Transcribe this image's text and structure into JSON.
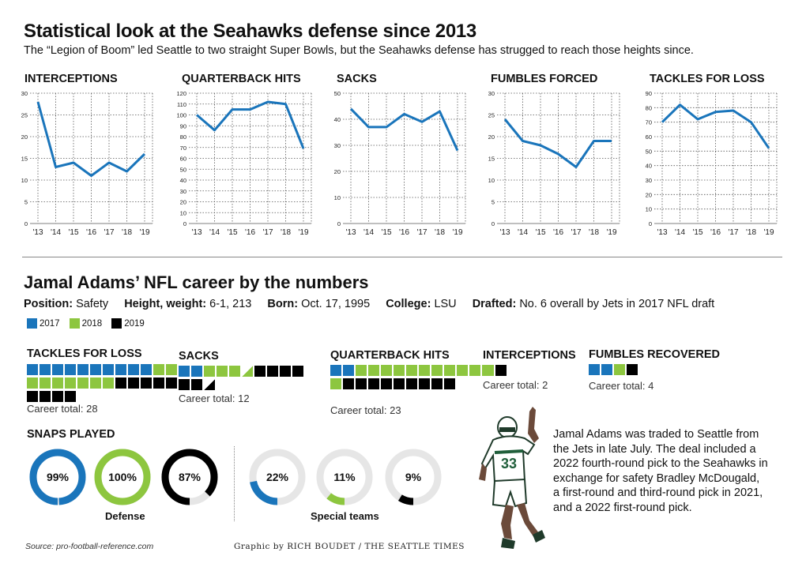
{
  "header": {
    "title": "Statistical look at the Seahawks defense since 2013",
    "subtitle": "The “Legion of Boom” led Seattle to two straight Super Bowls, but the Seahawks defense has strugged to reach those heights since."
  },
  "colors": {
    "y2017": "#1a75bb",
    "y2018": "#8dc63f",
    "y2019": "#000000",
    "line": "#1a75bb",
    "ring": "#e6e6e6"
  },
  "chart_data": [
    {
      "type": "line",
      "title": "INTERCEPTIONS",
      "categories": [
        "'13",
        "'14",
        "'15",
        "'16",
        "'17",
        "'18",
        "'19"
      ],
      "values": [
        28,
        13,
        14,
        11,
        14,
        12,
        16
      ],
      "ylim": [
        0,
        30
      ],
      "yticks": [
        0,
        5,
        10,
        15,
        20,
        25,
        30
      ],
      "grid": true
    },
    {
      "type": "line",
      "title": "QUARTERBACK HITS",
      "categories": [
        "'13",
        "'14",
        "'15",
        "'16",
        "'17",
        "'18",
        "'19"
      ],
      "values": [
        100,
        86,
        105,
        105,
        112,
        110,
        69
      ],
      "ylim": [
        0,
        120
      ],
      "yticks": [
        0,
        10,
        20,
        30,
        40,
        50,
        60,
        70,
        80,
        90,
        100,
        110,
        120
      ],
      "grid": true
    },
    {
      "type": "line",
      "title": "SACKS",
      "categories": [
        "'13",
        "'14",
        "'15",
        "'16",
        "'17",
        "'18",
        "'19"
      ],
      "values": [
        44,
        37,
        37,
        42,
        39,
        43,
        28
      ],
      "ylim": [
        0,
        50
      ],
      "yticks": [
        0,
        10,
        20,
        30,
        40,
        50
      ],
      "grid": true
    },
    {
      "type": "line",
      "title": "FUMBLES FORCED",
      "categories": [
        "'13",
        "'14",
        "'15",
        "'16",
        "'17",
        "'18",
        "'19"
      ],
      "values": [
        24,
        19,
        18,
        16,
        13,
        19,
        19
      ],
      "ylim": [
        0,
        30
      ],
      "yticks": [
        0,
        5,
        10,
        15,
        20,
        25,
        30
      ],
      "grid": true
    },
    {
      "type": "line",
      "title": "TACKLES FOR LOSS",
      "categories": [
        "'13",
        "'14",
        "'15",
        "'16",
        "'17",
        "'18",
        "'19"
      ],
      "values": [
        70,
        82,
        72,
        77,
        78,
        70,
        52
      ],
      "ylim": [
        0,
        90
      ],
      "yticks": [
        0,
        10,
        20,
        30,
        40,
        50,
        60,
        70,
        80,
        90
      ],
      "grid": true
    }
  ],
  "section2": {
    "title": "Jamal Adams’ NFL career by the numbers",
    "bio": [
      {
        "label": "Position:",
        "value": "Safety"
      },
      {
        "label": "Height, weight:",
        "value": "6-1, 213"
      },
      {
        "label": "Born:",
        "value": "Oct. 17, 1995"
      },
      {
        "label": "College:",
        "value": "LSU"
      },
      {
        "label": "Drafted:",
        "value": "No. 6 overall by Jets in 2017 NFL draft"
      }
    ],
    "legend": [
      "2017",
      "2018",
      "2019"
    ],
    "stats": [
      {
        "title": "TACKLES FOR LOSS",
        "career": "Career total: 28",
        "y2017": 10,
        "y2018": 9,
        "y2019": 9
      },
      {
        "title": "SACKS",
        "career": "Career total: 12",
        "y2017": 2,
        "y2018": 3.5,
        "y2019": 6.5
      },
      {
        "title": "QUARTERBACK HITS",
        "career": "Career total: 23",
        "y2017": 2,
        "y2018": 12,
        "y2019": 9
      },
      {
        "title": "INTERCEPTIONS",
        "career": "Career total: 2",
        "y2017": 0,
        "y2018": 1,
        "y2019": 1
      },
      {
        "title": "FUMBLES RECOVERED",
        "career": "Career total: 4",
        "y2017": 2,
        "y2018": 1,
        "y2019": 1
      }
    ],
    "snaps": {
      "title": "SNAPS PLAYED",
      "defense_label": "Defense",
      "special_label": "Special teams",
      "defense": [
        {
          "label": "99%",
          "value": 99,
          "year": "2017"
        },
        {
          "label": "100%",
          "value": 100,
          "year": "2018"
        },
        {
          "label": "87%",
          "value": 87,
          "year": "2019"
        }
      ],
      "special": [
        {
          "label": "22%",
          "value": 22,
          "year": "2017"
        },
        {
          "label": "11%",
          "value": 11,
          "year": "2018"
        },
        {
          "label": "9%",
          "value": 9,
          "year": "2019"
        }
      ]
    },
    "note": "Jamal Adams was traded to Seattle from the Jets in late July. The deal included a 2022 fourth-round pick to the Seahawks in exchange for safety Bradley McDougald, a first-round and third-round pick in 2021, and a 2022 first-round pick."
  },
  "footer": {
    "source": "Source: pro-football-reference.com",
    "credit": "Graphic by RICH BOUDET / THE SEATTLE TIMES"
  }
}
